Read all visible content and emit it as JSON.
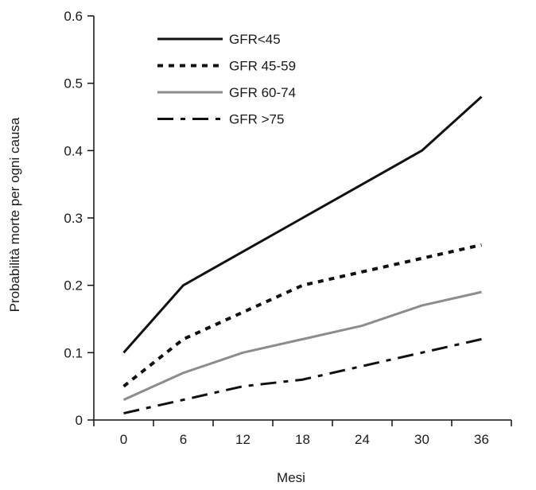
{
  "chart_data": {
    "type": "line",
    "title": "",
    "xlabel": "Mesi",
    "ylabel": "Probabilità morte per ogni causa",
    "x": [
      0,
      6,
      12,
      18,
      24,
      30,
      36
    ],
    "x_ticks": [
      "0",
      "6",
      "12",
      "18",
      "24",
      "30",
      "36"
    ],
    "y_ticks": [
      "0",
      "0.1",
      "0.2",
      "0.3",
      "0.4",
      "0.5",
      "0.6"
    ],
    "xlim": [
      -3,
      39
    ],
    "ylim": [
      0,
      0.6
    ],
    "grid": false,
    "legend_position": "top-left",
    "series": [
      {
        "name": "GFR<45",
        "style": "solid",
        "color": "#111111",
        "values": [
          0.1,
          0.2,
          0.25,
          0.3,
          0.35,
          0.4,
          0.48
        ]
      },
      {
        "name": "GFR 45-59",
        "style": "dotted",
        "color": "#111111",
        "values": [
          0.05,
          0.12,
          0.16,
          0.2,
          0.22,
          0.24,
          0.26
        ]
      },
      {
        "name": "GFR 60-74",
        "style": "solid",
        "color": "#8c8c8c",
        "values": [
          0.03,
          0.07,
          0.1,
          0.12,
          0.14,
          0.17,
          0.19
        ]
      },
      {
        "name": "GFR >75",
        "style": "dashdot",
        "color": "#111111",
        "values": [
          0.01,
          0.03,
          0.05,
          0.06,
          0.08,
          0.1,
          0.12
        ]
      }
    ]
  }
}
